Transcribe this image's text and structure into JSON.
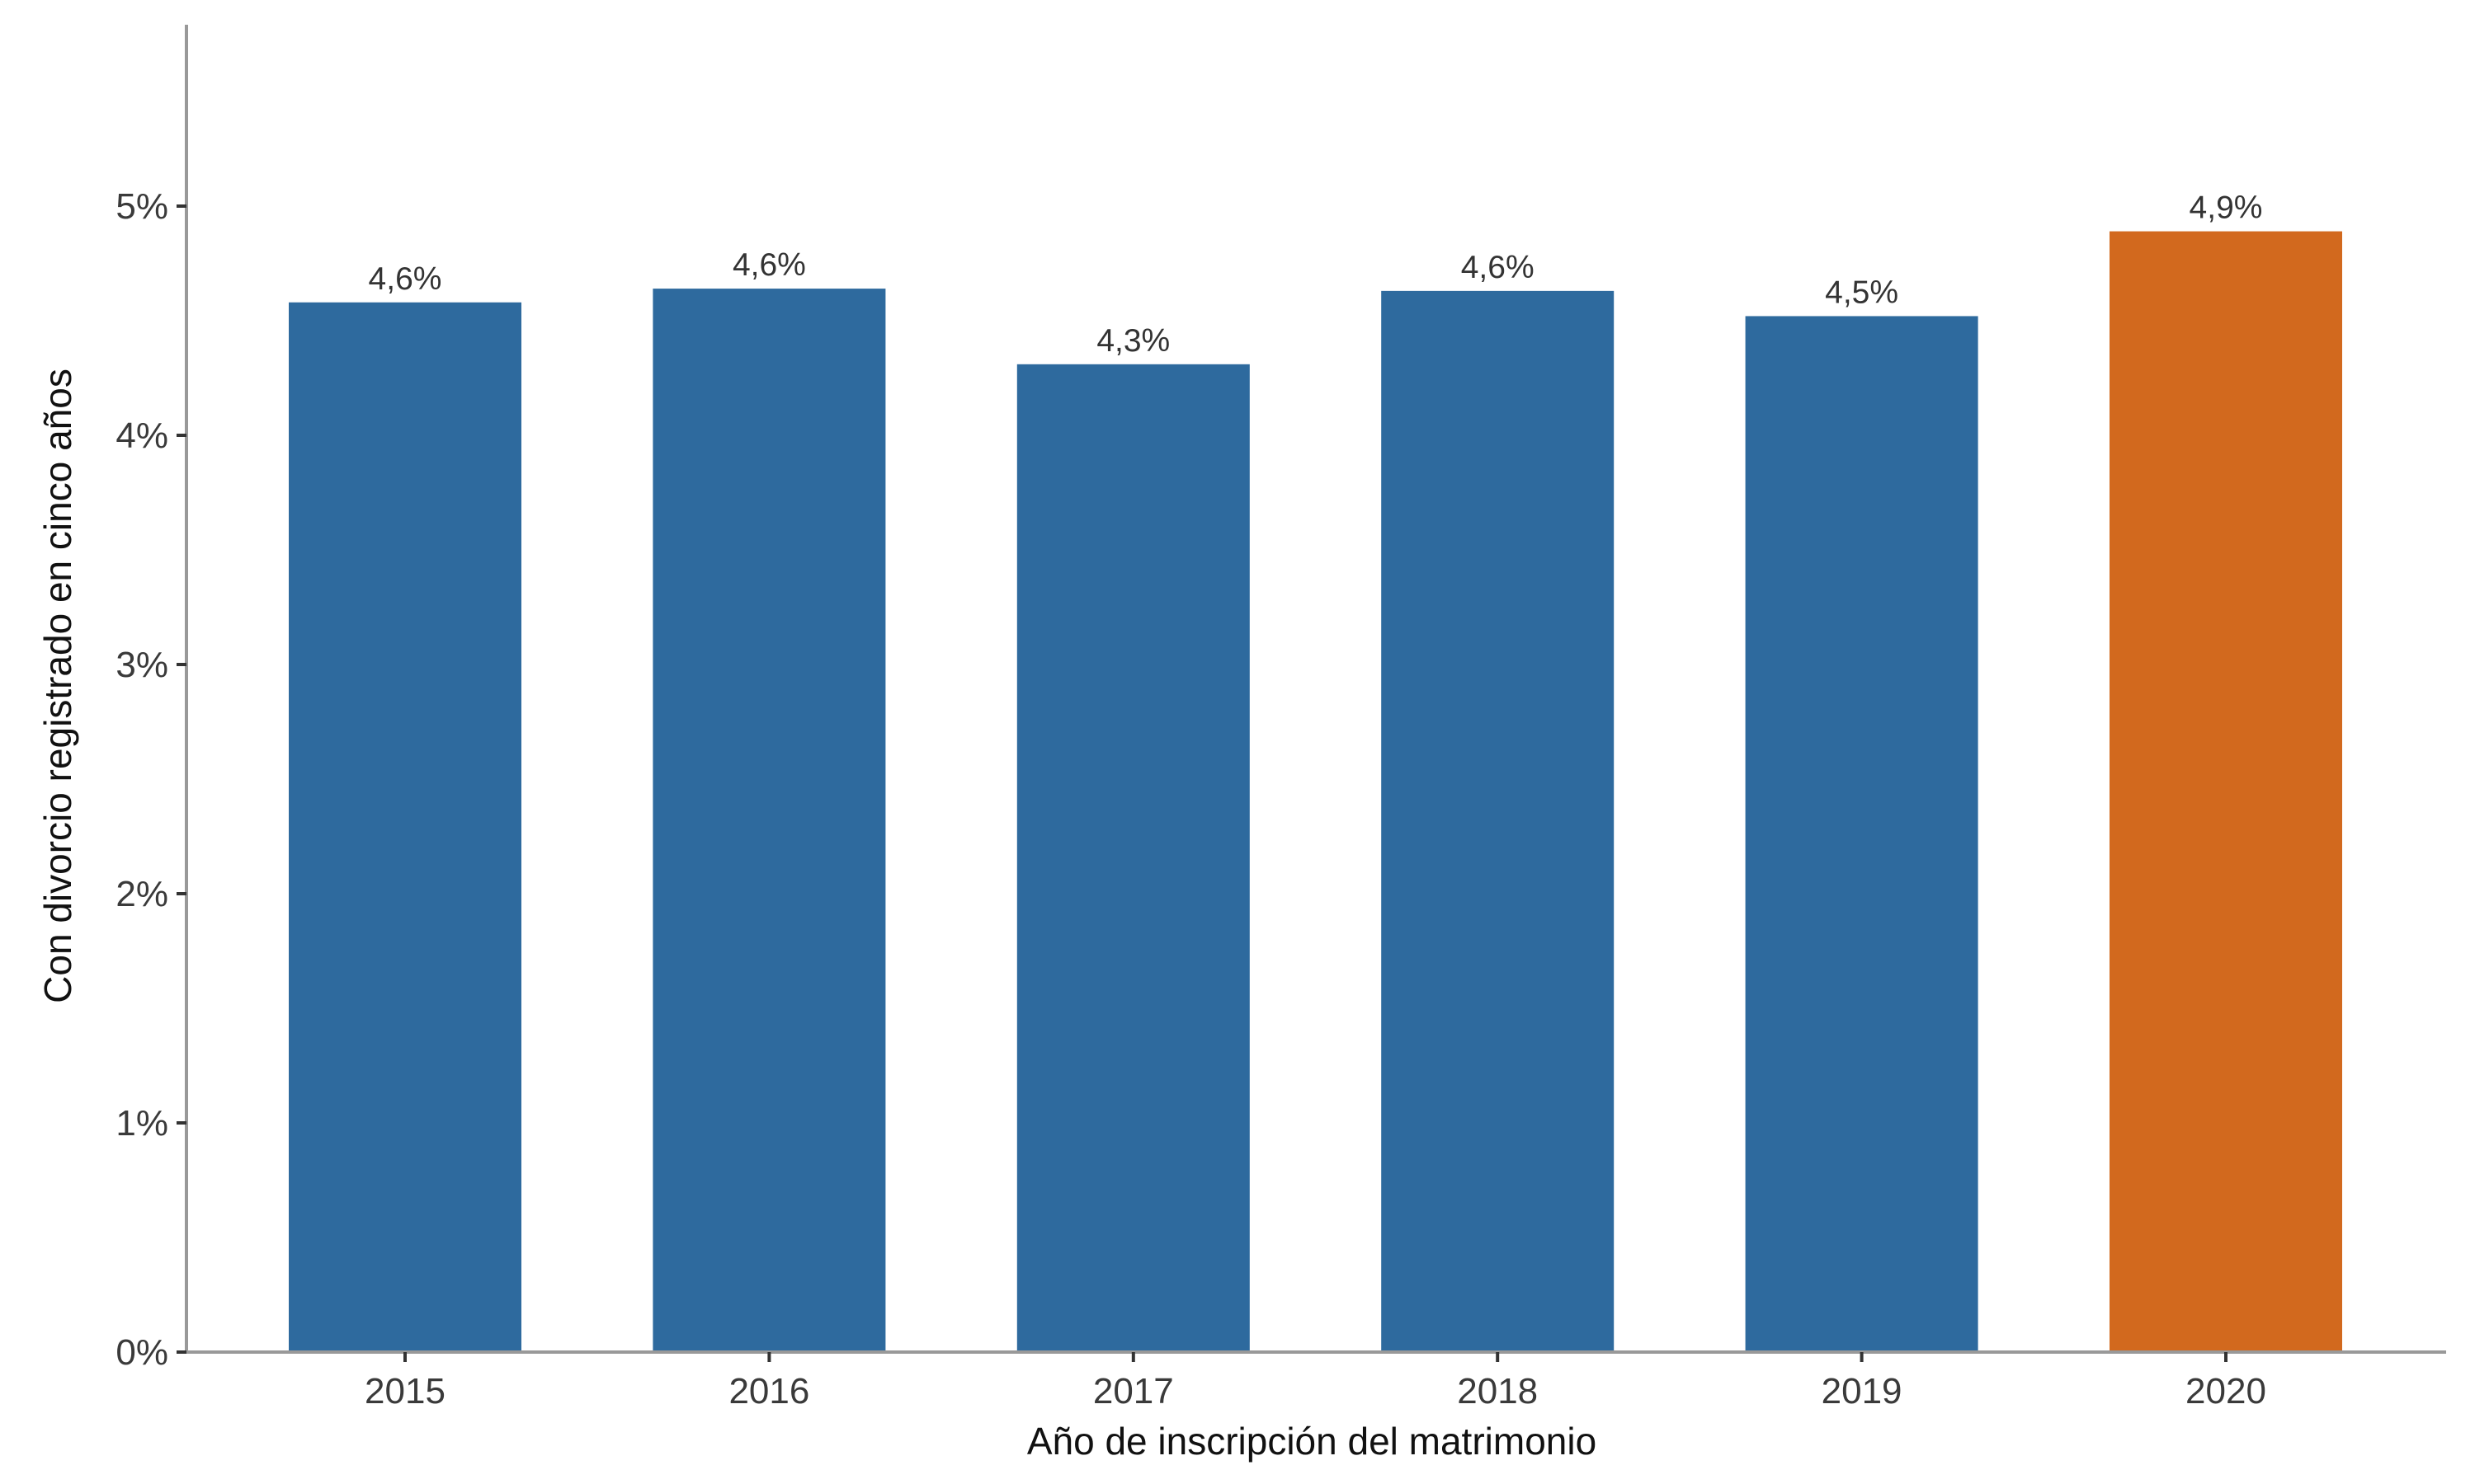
{
  "chart_data": {
    "type": "bar",
    "categories": [
      "2015",
      "2016",
      "2017",
      "2018",
      "2019",
      "2020"
    ],
    "values": [
      4.58,
      4.64,
      4.31,
      4.63,
      4.52,
      4.89
    ],
    "data_labels": [
      "4,6%",
      "4,6%",
      "4,3%",
      "4,6%",
      "4,5%",
      "4,9%"
    ],
    "title": "",
    "xlabel": "Año de inscripción del matrimonio",
    "ylabel": "Con divorcio registrado en cinco años",
    "ylim": [
      0,
      5.8
    ],
    "yticks": [
      0,
      1,
      2,
      3,
      4,
      5
    ],
    "ytick_labels": [
      "0%",
      "1%",
      "2%",
      "3%",
      "4%",
      "5%"
    ],
    "grid": false,
    "legend": "none",
    "colors": {
      "default": "#2E6A9E",
      "highlight": "#D2691E",
      "highlight_category": "2020",
      "axis": "#999999",
      "tick": "#333333"
    }
  }
}
